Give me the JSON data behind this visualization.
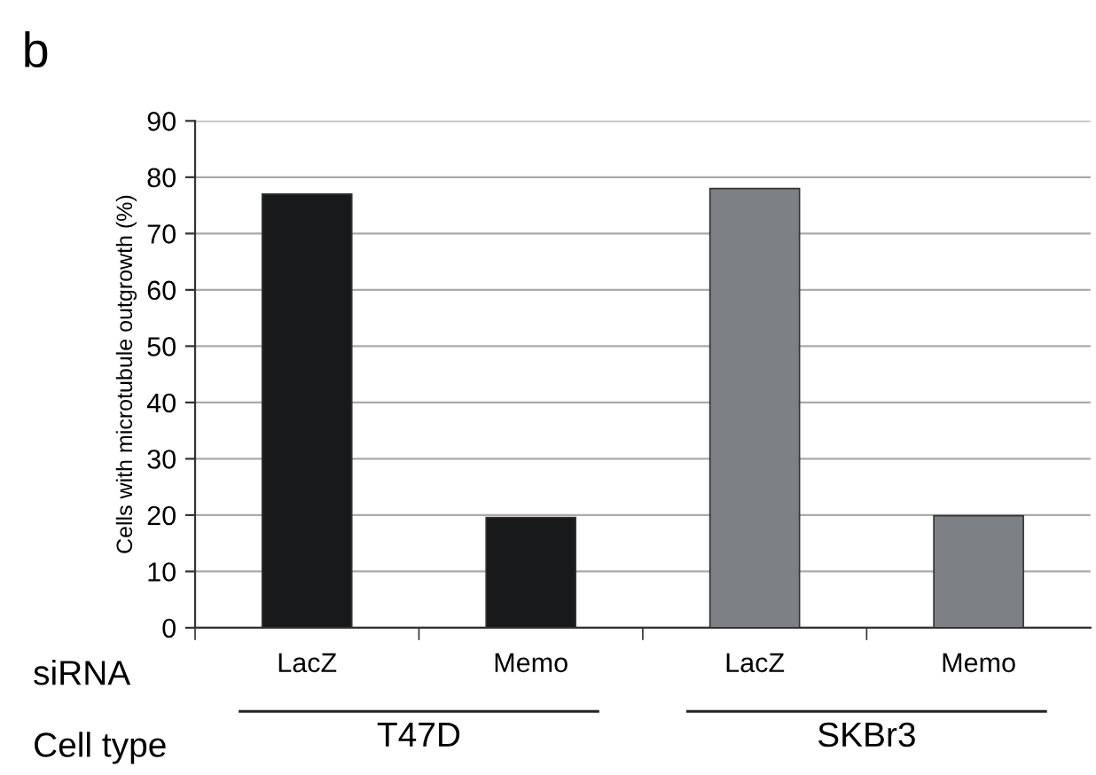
{
  "chart_data": {
    "type": "bar",
    "ylabel": "Cells with microtubule outgrowth (%)",
    "categories": [
      "LacZ",
      "Memo",
      "LacZ",
      "Memo"
    ],
    "values": [
      77,
      19.6,
      78,
      19.9
    ],
    "colors": [
      "#18191a",
      "#18191a",
      "#7d8185",
      "#7d8185"
    ],
    "ylim": [
      0,
      90
    ],
    "yticks": [
      0,
      10,
      20,
      30,
      40,
      50,
      60,
      70,
      80,
      90
    ],
    "grid": "y",
    "annotations": [
      "b",
      "siRNA",
      "Cell type",
      "T47D",
      "SKBr3"
    ]
  }
}
